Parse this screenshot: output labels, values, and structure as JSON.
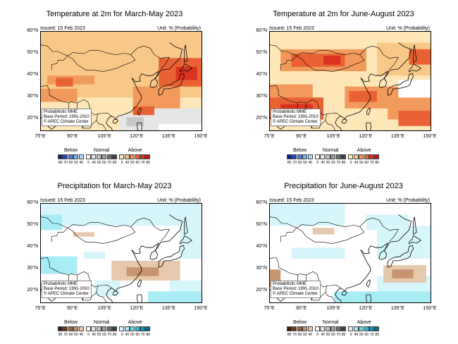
{
  "panels": [
    {
      "id": "temp-mam",
      "title": "Temperature at 2m for March-May 2023",
      "issued": "Issued: 15 Feb 2023",
      "unit": "Unit: % (Probability)",
      "info": [
        "Probabilistic MME",
        "Base Period: 1991-2010",
        "© APEC Climate Center"
      ],
      "variable": "temperature",
      "dominant_category": "above"
    },
    {
      "id": "temp-jja",
      "title": "Temperature at 2m for June-August 2023",
      "issued": "Issued: 15 Feb 2023",
      "unit": "Unit: % (Probability)",
      "info": [
        "Probabilistic MME",
        "Base Period: 1991-2010",
        "© APEC Climate Center"
      ],
      "variable": "temperature",
      "dominant_category": "above"
    },
    {
      "id": "prec-mam",
      "title": "Precipitation for March-May 2023",
      "issued": "Issued: 15 Feb 2023",
      "unit": "Unit: % (Probability)",
      "info": [
        "Probabilistic MME",
        "Base Period: 1991-2010",
        "© APEC Climate Center"
      ],
      "variable": "precipitation",
      "dominant_category": "mixed"
    },
    {
      "id": "prec-jja",
      "title": "Precipitation for June-August 2023",
      "issued": "Issued: 15 Feb 2023",
      "unit": "Unit: % (Probability)",
      "info": [
        "Probabilistic MME",
        "Base Period: 1991-2010",
        "© APEC Climate Center"
      ],
      "variable": "precipitation",
      "dominant_category": "mixed"
    }
  ],
  "axes": {
    "lat_labels": [
      "60°N",
      "50°N",
      "40°N",
      "30°N",
      "20°N"
    ],
    "lon_labels": [
      "75°E",
      "90°E",
      "105°E",
      "120°E",
      "135°E",
      "150°E"
    ]
  },
  "legend": {
    "categories": [
      "Below",
      "Normal",
      "Above"
    ],
    "below_ticks": [
      "80",
      "70",
      "60",
      "50",
      "40"
    ],
    "normal_ticks": [
      "0",
      "40",
      "50",
      "60",
      "70",
      "80"
    ],
    "above_ticks": [
      "0",
      "40",
      "50",
      "60",
      "70",
      "80"
    ],
    "temperature_colors": {
      "below": [
        "#0a1f8c",
        "#2245c8",
        "#4a7fe0",
        "#7fb0f0",
        "#b8d6f8"
      ],
      "normal": [
        "#ffffff",
        "#e6e6e6",
        "#c8c8c8",
        "#a0a0a0",
        "#707070",
        "#404040"
      ],
      "above": [
        "#fde6b8",
        "#f8c888",
        "#f29a5c",
        "#ea6234",
        "#dc3220",
        "#c4101a"
      ]
    },
    "precipitation_colors": {
      "below": [
        "#3d1e08",
        "#6b3a18",
        "#9a6438",
        "#c59470",
        "#e6c8ac"
      ],
      "normal": [
        "#ffffff",
        "#e6e6e6",
        "#c8c8c8",
        "#a0a0a0",
        "#707070",
        "#404040"
      ],
      "above": [
        "#d6f6fb",
        "#a8ecf6",
        "#6cd8ec",
        "#30bcd8",
        "#0a98bc",
        "#066a8c"
      ]
    }
  }
}
